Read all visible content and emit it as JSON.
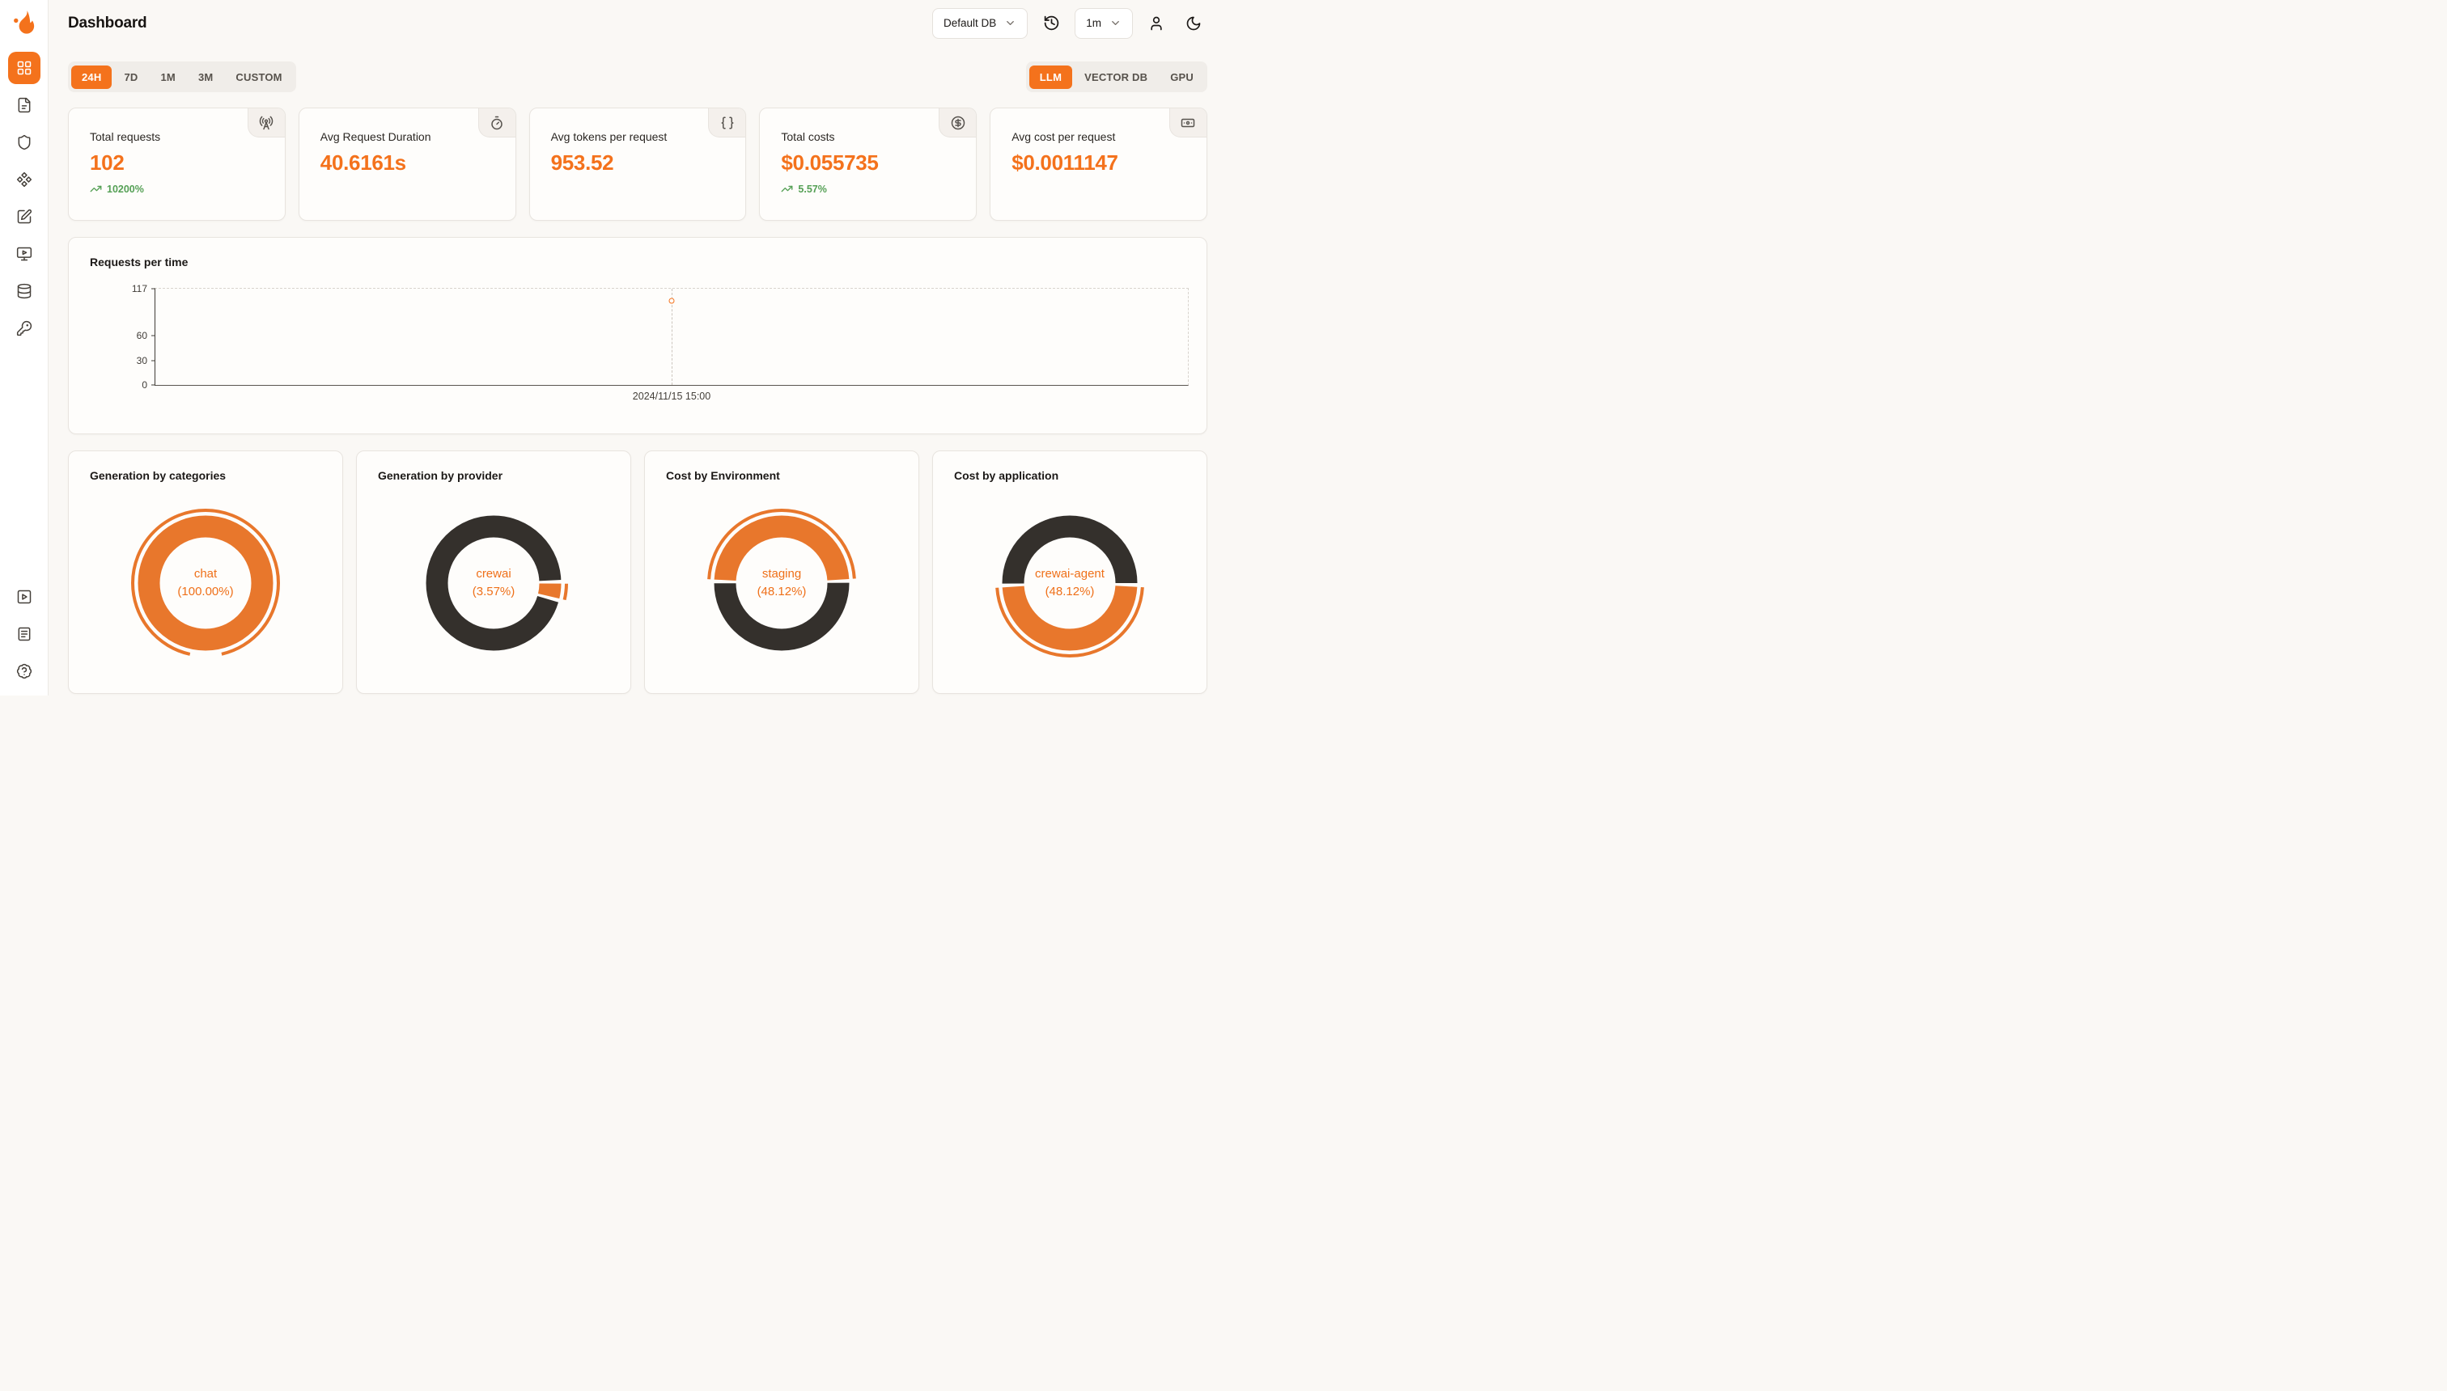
{
  "colors": {
    "accent_orange": "#f4721c",
    "donut_orange": "#e8772c",
    "donut_dark": "#34302c",
    "delta_green": "#55a055",
    "background": "#faf8f5"
  },
  "header": {
    "title": "Dashboard",
    "db_select": {
      "value": "Default DB"
    },
    "interval_select": {
      "value": "1m"
    },
    "actions": [
      {
        "icon": "history-icon"
      },
      {
        "icon": "user-icon"
      },
      {
        "icon": "moon-icon"
      }
    ]
  },
  "sidebar": {
    "items": [
      {
        "name": "dashboard",
        "icon": "layout-grid-icon",
        "active": true
      },
      {
        "name": "requests",
        "icon": "file-text-icon",
        "active": false
      },
      {
        "name": "exceptions",
        "icon": "shield-icon",
        "active": false
      },
      {
        "name": "traces",
        "icon": "diamonds-icon",
        "active": false
      },
      {
        "name": "prompts",
        "icon": "square-pen-icon",
        "active": false
      },
      {
        "name": "playground",
        "icon": "monitor-play-icon",
        "active": false
      },
      {
        "name": "databases",
        "icon": "database-icon",
        "active": false
      },
      {
        "name": "api-keys",
        "icon": "key-icon",
        "active": false
      }
    ],
    "bottom_items": [
      {
        "name": "getting-started",
        "icon": "play-square-icon"
      },
      {
        "name": "docs",
        "icon": "document-lines-icon"
      },
      {
        "name": "support",
        "icon": "badge-help-icon"
      }
    ]
  },
  "toolbar": {
    "time_tabs": [
      {
        "label": "24H",
        "active": true
      },
      {
        "label": "7D",
        "active": false
      },
      {
        "label": "1M",
        "active": false
      },
      {
        "label": "3M",
        "active": false
      },
      {
        "label": "CUSTOM",
        "active": false
      }
    ],
    "mode_tabs": [
      {
        "label": "LLM",
        "active": true
      },
      {
        "label": "VECTOR DB",
        "active": false
      },
      {
        "label": "GPU",
        "active": false
      }
    ]
  },
  "stats": [
    {
      "label": "Total requests",
      "value": "102",
      "delta": "10200%",
      "icon": "radio-tower-icon"
    },
    {
      "label": "Avg Request Duration",
      "value": "40.6161s",
      "icon": "timer-icon"
    },
    {
      "label": "Avg tokens per request",
      "value": "953.52",
      "icon": "braces-icon"
    },
    {
      "label": "Total costs",
      "value": "$0.055735",
      "delta": "5.57%",
      "icon": "circle-dollar-icon"
    },
    {
      "label": "Avg cost per request",
      "value": "$0.0011147",
      "icon": "banknote-icon"
    }
  ],
  "chart_data": [
    {
      "type": "line",
      "title": "Requests per time",
      "x": [
        "2024/11/15 15:00"
      ],
      "series": [
        {
          "name": "Requests",
          "values": [
            102
          ]
        }
      ],
      "ylim": [
        0,
        117
      ],
      "yticks": [
        117,
        60,
        30,
        0
      ],
      "point_fraction_x": 0.5,
      "grid": "dashed-frame-top-right",
      "legend": "none",
      "xlabel": "",
      "ylabel": ""
    },
    {
      "type": "pie",
      "title": "Generation by categories",
      "center_label": [
        "chat",
        "(100.00%)"
      ],
      "slices": [
        {
          "name": "chat",
          "pct": 100.0,
          "color": "#e8772c"
        }
      ],
      "highlight": {
        "pct": 100.0,
        "center_deg": 0
      }
    },
    {
      "type": "pie",
      "title": "Generation by provider",
      "center_label": [
        "crewai",
        "(3.57%)"
      ],
      "slices": [
        {
          "name": "crewai",
          "pct": 3.57,
          "color": "#e8772c"
        },
        {
          "name": "other",
          "pct": 96.43,
          "color": "#34302c"
        }
      ],
      "highlight": {
        "pct": 3.57,
        "center_deg": 97
      }
    },
    {
      "type": "pie",
      "title": "Cost by Environment",
      "center_label": [
        "staging",
        "(48.12%)"
      ],
      "slices": [
        {
          "name": "staging",
          "pct": 48.12,
          "color": "#e8772c"
        },
        {
          "name": "other",
          "pct": 51.88,
          "color": "#34302c"
        }
      ],
      "highlight": {
        "pct": 48.12,
        "center_deg": 0
      }
    },
    {
      "type": "pie",
      "title": "Cost by application",
      "center_label": [
        "crewai-agent",
        "(48.12%)"
      ],
      "slices": [
        {
          "name": "crewai-agent",
          "pct": 48.12,
          "color": "#e8772c"
        },
        {
          "name": "other",
          "pct": 51.88,
          "color": "#34302c"
        }
      ],
      "highlight": {
        "pct": 48.12,
        "center_deg": 180
      }
    }
  ]
}
